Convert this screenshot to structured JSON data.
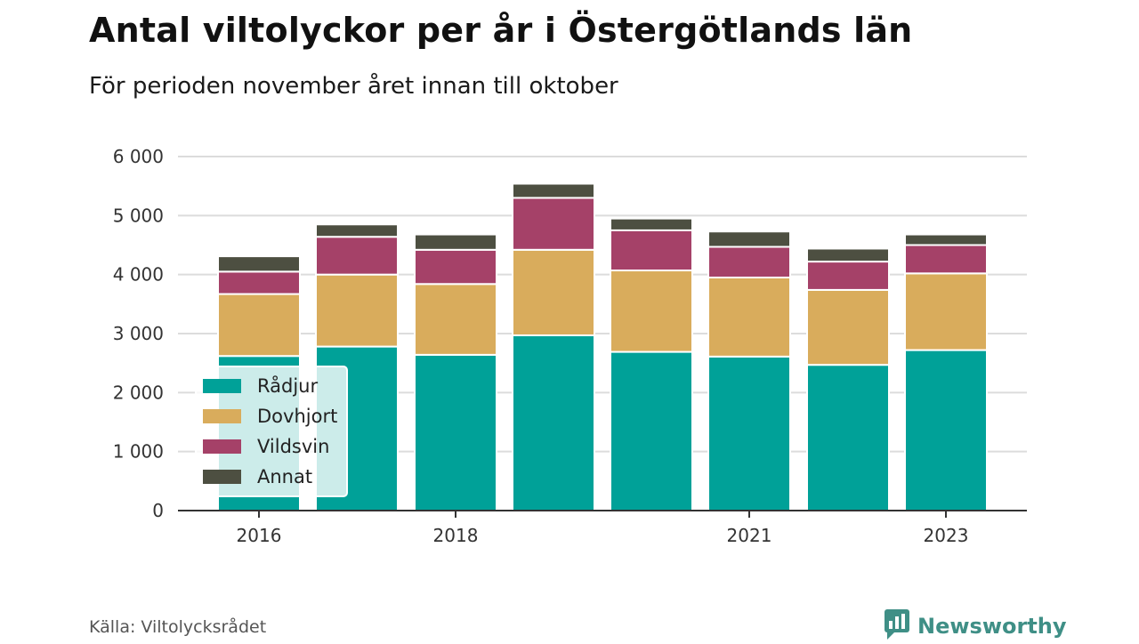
{
  "title": "Antal viltolyckor per år i Östergötlands län",
  "subtitle": "För perioden november året innan till oktober",
  "source": "Källa: Viltolycksrådet",
  "brand": {
    "name": "Newsworthy",
    "icon": "newsworthy-logo-icon",
    "color": "#3f8f86"
  },
  "chart_data": {
    "type": "bar",
    "stacked": true,
    "categories": [
      "2016",
      "2017",
      "2018",
      "2019",
      "2020",
      "2021",
      "2022",
      "2023"
    ],
    "x_tick_labels": [
      "2016",
      "",
      "2018",
      "",
      "",
      "2021",
      "",
      "2023"
    ],
    "y_ticks": [
      0,
      1000,
      2000,
      3000,
      4000,
      5000,
      6000
    ],
    "y_tick_labels": [
      "0",
      "1 000",
      "2 000",
      "3 000",
      "4 000",
      "5 000",
      "6 000"
    ],
    "ylim": [
      0,
      6000
    ],
    "xlabel": "",
    "ylabel": "",
    "grid": true,
    "legend_position": "bottom-left",
    "series": [
      {
        "name": "Rådjur",
        "color": "#00a198",
        "values": [
          2620,
          2780,
          2640,
          2970,
          2690,
          2610,
          2470,
          2720
        ]
      },
      {
        "name": "Dovhjort",
        "color": "#d9ac5c",
        "values": [
          1050,
          1220,
          1200,
          1450,
          1380,
          1340,
          1270,
          1300
        ]
      },
      {
        "name": "Vildsvin",
        "color": "#a54168",
        "values": [
          380,
          640,
          580,
          880,
          680,
          520,
          480,
          480
        ]
      },
      {
        "name": "Annat",
        "color": "#4d4f41",
        "values": [
          260,
          210,
          260,
          240,
          200,
          260,
          220,
          180
        ]
      }
    ]
  }
}
